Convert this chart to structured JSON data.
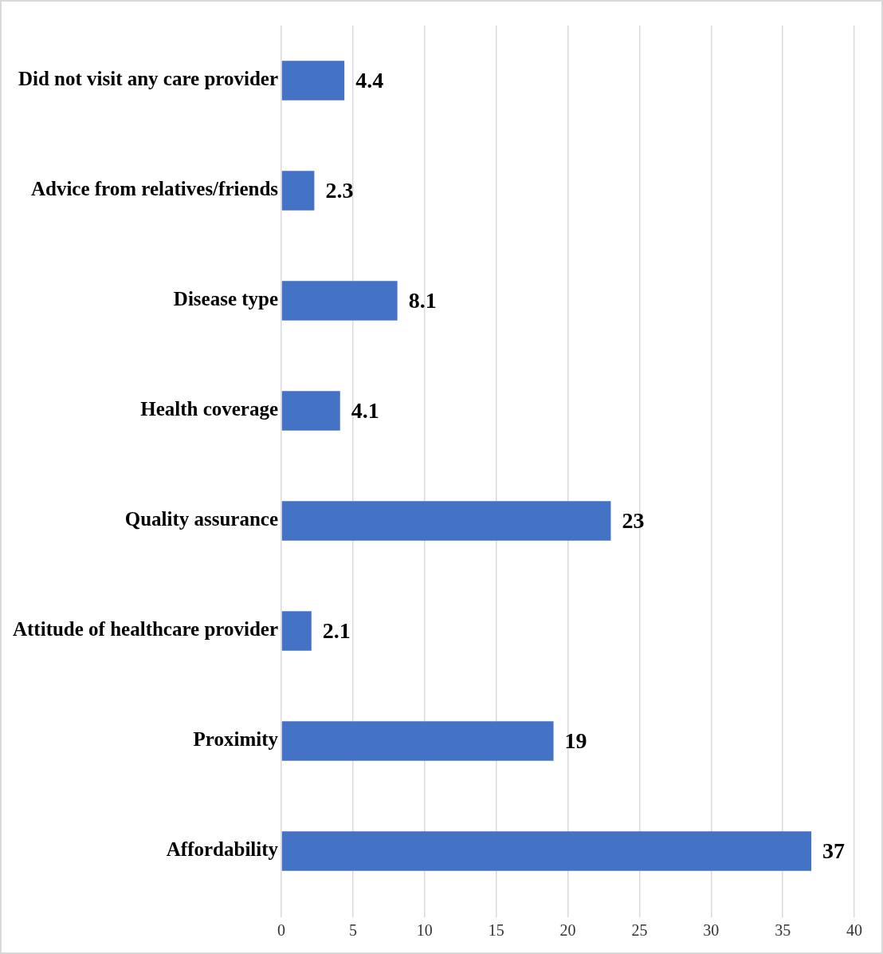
{
  "chart_data": {
    "type": "bar",
    "orientation": "horizontal",
    "categories": [
      "Did not visit any care provider",
      "Advice from relatives/friends",
      "Disease type",
      "Health coverage",
      "Quality assurance",
      "Attitude of healthcare provider",
      "Proximity",
      "Affordability"
    ],
    "values": [
      4.4,
      2.3,
      8.1,
      4.1,
      23,
      2.1,
      19,
      37
    ],
    "color": "#4472c4",
    "xlim": [
      0,
      40
    ],
    "xticks": [
      0,
      5,
      10,
      15,
      20,
      25,
      30,
      35,
      40
    ],
    "grid": "x",
    "legend": false,
    "data_labels": true
  }
}
